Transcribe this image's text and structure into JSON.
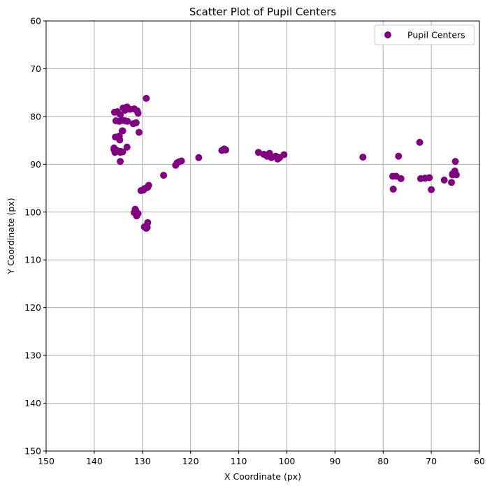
{
  "chart_data": {
    "type": "scatter",
    "title": "Scatter Plot of Pupil Centers",
    "xlabel": "X Coordinate (px)",
    "ylabel": "Y Coordinate (px)",
    "xlim": [
      150,
      60
    ],
    "ylim": [
      150,
      60
    ],
    "x_inverted": true,
    "y_inverted": true,
    "xticks": [
      "150",
      "140",
      "130",
      "120",
      "110",
      "100",
      "90",
      "80",
      "70",
      "60"
    ],
    "yticks": [
      "60",
      "70",
      "80",
      "90",
      "100",
      "110",
      "120",
      "130",
      "140",
      "150"
    ],
    "grid": true,
    "legend_position": "top-right",
    "series": [
      {
        "name": "Pupil Centers",
        "color": "#800080",
        "marker": "circle",
        "x": [
          129.2,
          135.8,
          135.2,
          134.6,
          134.0,
          133.6,
          133.2,
          132.6,
          131.7,
          131.1,
          130.9,
          135.5,
          134.8,
          134.1,
          133.6,
          133.1,
          135.6,
          134.8,
          134.2,
          131.9,
          131.3,
          134.7,
          134.1,
          130.7,
          135.9,
          135.3,
          134.5,
          135.9,
          135.7,
          134.6,
          134.1,
          133.2,
          134.6,
          130.3,
          129.6,
          129.1,
          128.9,
          128.7,
          129.8,
          131.5,
          131.2,
          130.9,
          131.7,
          131.4,
          129.2,
          129.6,
          128.9,
          129.0,
          125.6,
          123.1,
          122.8,
          122.4,
          121.9,
          118.3,
          113.5,
          113.0,
          112.7,
          105.9,
          104.8,
          104.1,
          103.6,
          103.2,
          102.3,
          101.9,
          101.5,
          100.6,
          84.2,
          78.0,
          77.3,
          76.3,
          76.8,
          77.9,
          72.4,
          72.2,
          71.3,
          70.4,
          70.0,
          67.3,
          65.8,
          65.6,
          65.0,
          65.1,
          64.8,
          65.6
        ],
        "y": [
          76.2,
          79.1,
          79.0,
          79.6,
          78.2,
          78.7,
          78.0,
          78.5,
          78.4,
          78.8,
          79.3,
          80.9,
          81.0,
          80.8,
          80.9,
          81.0,
          84.3,
          84.1,
          83.0,
          81.5,
          81.3,
          84.9,
          83.0,
          83.3,
          86.6,
          87.1,
          87.3,
          86.9,
          87.5,
          87.5,
          87.4,
          86.4,
          89.4,
          95.5,
          95.1,
          94.9,
          94.8,
          94.4,
          95.4,
          99.4,
          100.8,
          100.3,
          100.1,
          99.6,
          103.4,
          103.1,
          102.2,
          103.2,
          92.3,
          90.2,
          89.7,
          89.5,
          89.3,
          88.6,
          87.1,
          86.8,
          87.0,
          87.5,
          87.9,
          88.3,
          87.7,
          88.6,
          88.3,
          88.9,
          88.6,
          88.0,
          88.5,
          92.5,
          92.5,
          93.0,
          88.3,
          95.2,
          85.4,
          93.0,
          92.9,
          92.8,
          95.3,
          93.3,
          93.8,
          92.2,
          89.4,
          91.4,
          92.2,
          92.0
        ]
      }
    ]
  },
  "legend": {
    "label": "Pupil Centers"
  }
}
